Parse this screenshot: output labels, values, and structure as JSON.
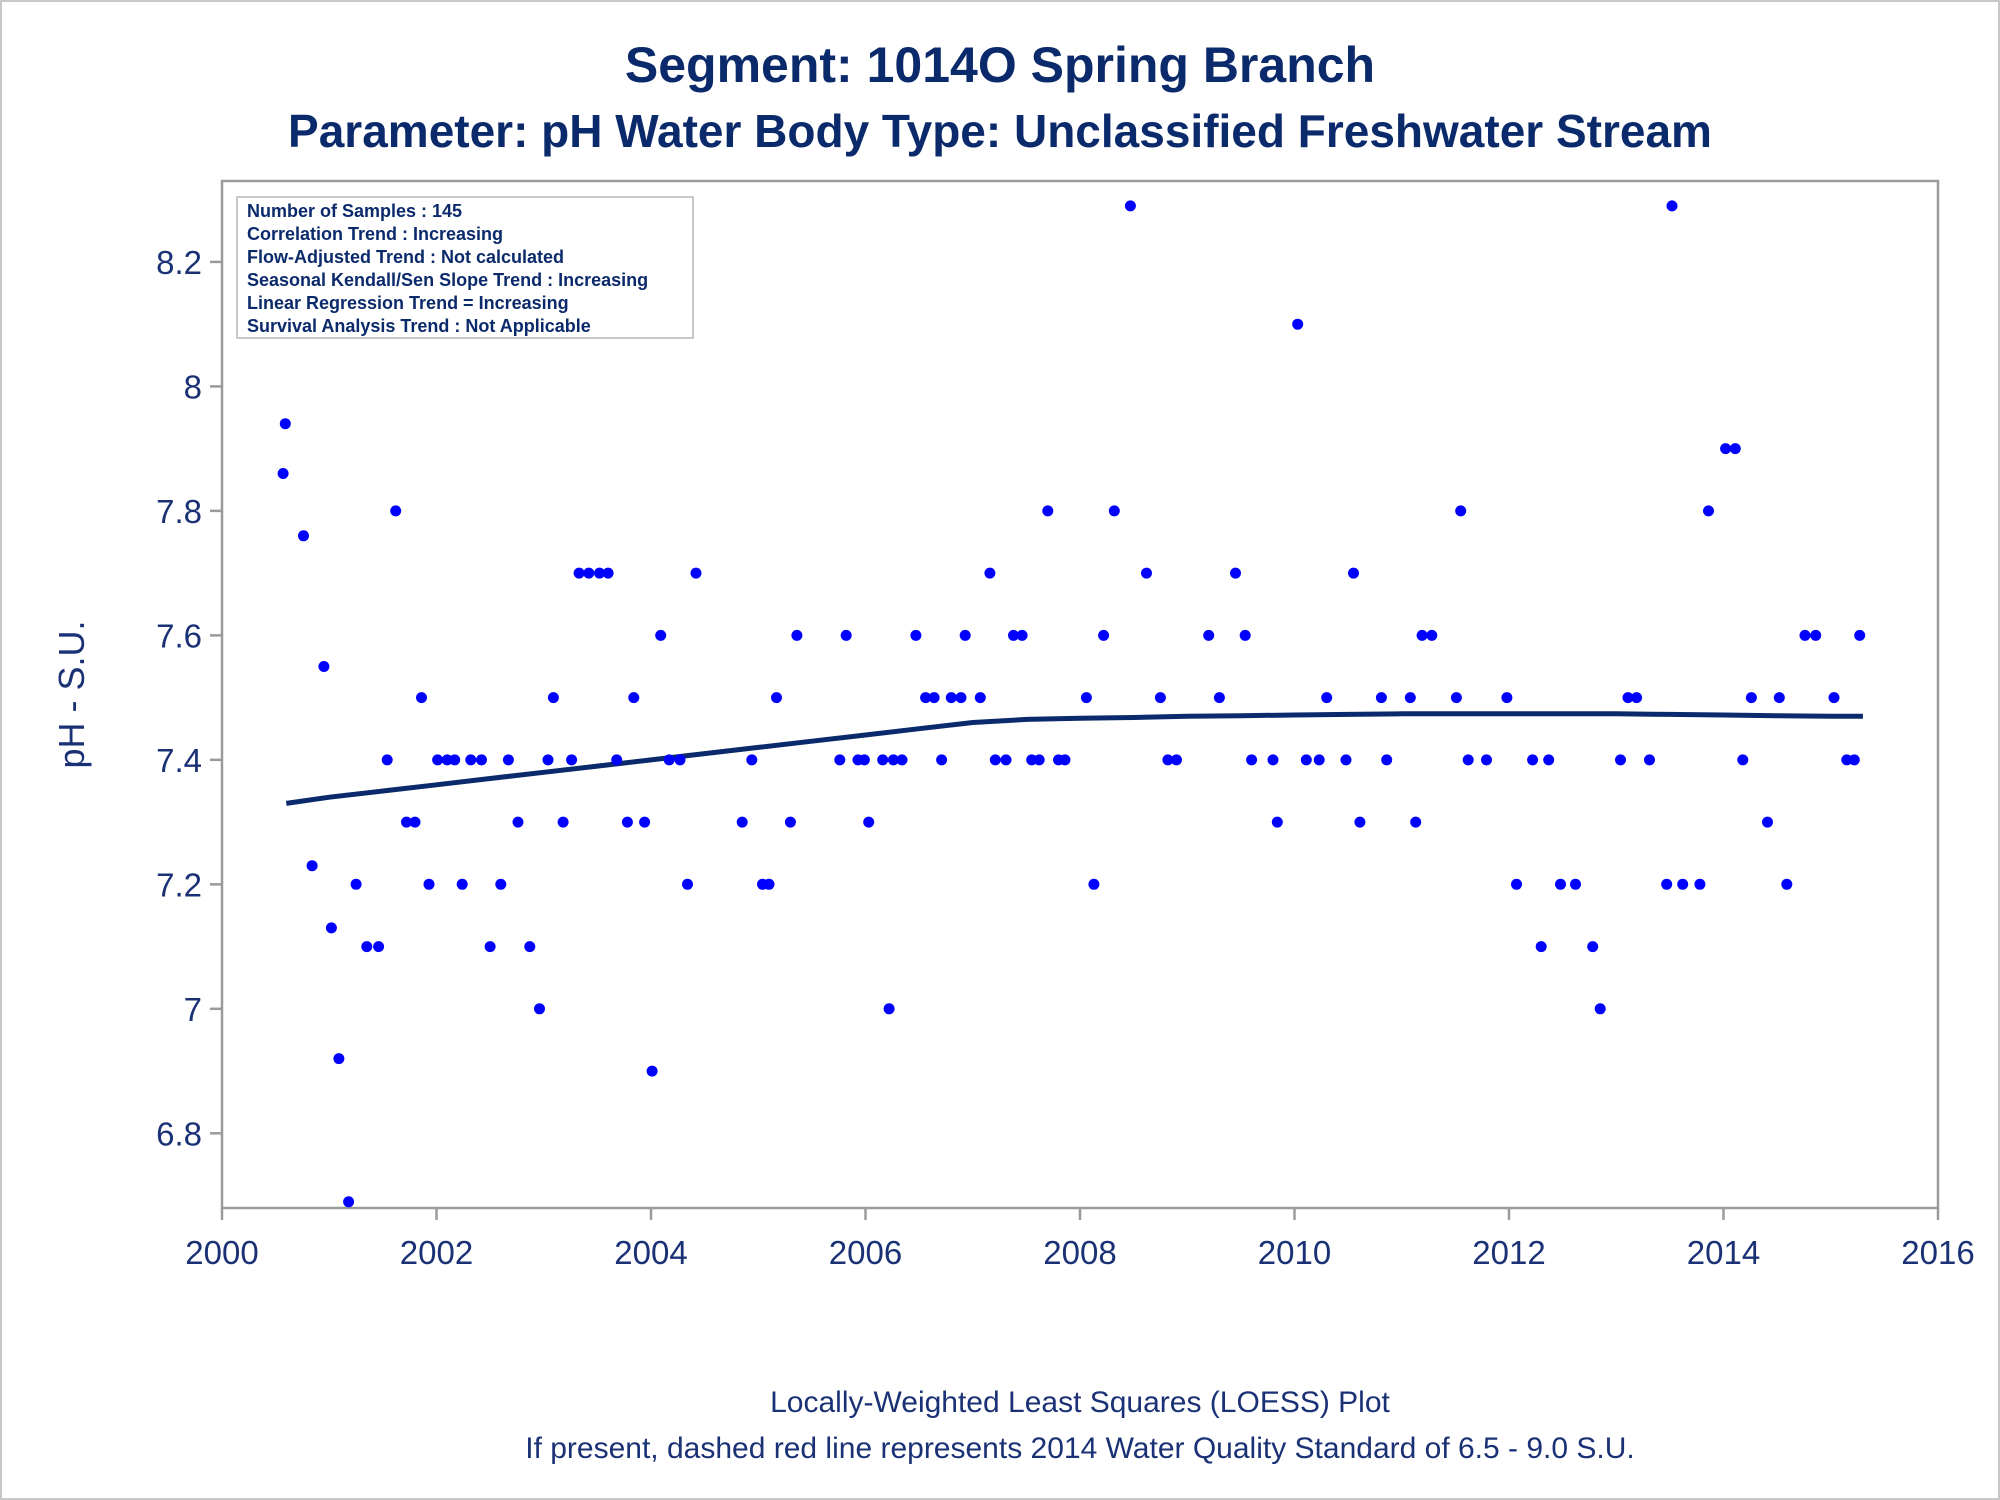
{
  "chart_data": {
    "type": "scatter",
    "title": "Segment: 1014O  Spring Branch",
    "subtitle": "Parameter: pH   Water Body Type: Unclassified Freshwater Stream",
    "xlabel": "",
    "ylabel": "pH - S.U.",
    "xlim": [
      2000,
      2016
    ],
    "ylim": [
      6.68,
      8.33
    ],
    "x_ticks": [
      "2000",
      "2002",
      "2004",
      "2006",
      "2008",
      "2010",
      "2012",
      "2014",
      "2016"
    ],
    "y_ticks": [
      "6.8",
      "7",
      "7.2",
      "7.4",
      "7.6",
      "7.8",
      "8",
      "8.2"
    ],
    "grid": false,
    "stats_box": [
      "Number of Samples : 145",
      "Correlation Trend : Increasing",
      "Flow-Adjusted Trend : Not calculated",
      "Seasonal Kendall/Sen Slope Trend : Increasing",
      "Linear Regression Trend = Increasing",
      "Survival Analysis Trend : Not Applicable"
    ],
    "footnotes": [
      "Locally-Weighted Least Squares (LOESS) Plot",
      "If present, dashed red line represents 2014 Water Quality Standard of 6.5 - 9.0 S.U."
    ],
    "colors": {
      "points": "#0000ff",
      "loess": "#0b2a6b",
      "text": "#0b2a6b",
      "frame": "#9a9a9a"
    },
    "series": [
      {
        "type": "scatter",
        "points": [
          [
            2000.57,
            7.86
          ],
          [
            2000.59,
            7.94
          ],
          [
            2000.76,
            7.76
          ],
          [
            2000.84,
            7.23
          ],
          [
            2000.95,
            7.55
          ],
          [
            2001.02,
            7.13
          ],
          [
            2001.09,
            6.92
          ],
          [
            2001.18,
            6.69
          ],
          [
            2001.25,
            7.2
          ],
          [
            2001.35,
            7.1
          ],
          [
            2001.46,
            7.1
          ],
          [
            2001.54,
            7.4
          ],
          [
            2001.62,
            7.8
          ],
          [
            2001.72,
            7.3
          ],
          [
            2001.8,
            7.3
          ],
          [
            2001.86,
            7.5
          ],
          [
            2001.93,
            7.2
          ],
          [
            2002.01,
            7.4
          ],
          [
            2002.1,
            7.4
          ],
          [
            2002.17,
            7.4
          ],
          [
            2002.24,
            7.2
          ],
          [
            2002.32,
            7.4
          ],
          [
            2002.42,
            7.4
          ],
          [
            2002.5,
            7.1
          ],
          [
            2002.6,
            7.2
          ],
          [
            2002.67,
            7.4
          ],
          [
            2002.76,
            7.3
          ],
          [
            2002.87,
            7.1
          ],
          [
            2002.96,
            7.0
          ],
          [
            2003.04,
            7.4
          ],
          [
            2003.09,
            7.5
          ],
          [
            2003.18,
            7.3
          ],
          [
            2003.26,
            7.4
          ],
          [
            2003.33,
            7.7
          ],
          [
            2003.42,
            7.7
          ],
          [
            2003.52,
            7.7
          ],
          [
            2003.6,
            7.7
          ],
          [
            2003.68,
            7.4
          ],
          [
            2003.78,
            7.3
          ],
          [
            2003.84,
            7.5
          ],
          [
            2003.94,
            7.3
          ],
          [
            2004.01,
            6.9
          ],
          [
            2004.09,
            7.6
          ],
          [
            2004.17,
            7.4
          ],
          [
            2004.27,
            7.4
          ],
          [
            2004.34,
            7.2
          ],
          [
            2004.42,
            7.7
          ],
          [
            2004.85,
            7.3
          ],
          [
            2004.94,
            7.4
          ],
          [
            2005.04,
            7.2
          ],
          [
            2005.1,
            7.2
          ],
          [
            2005.17,
            7.5
          ],
          [
            2005.3,
            7.3
          ],
          [
            2005.36,
            7.6
          ],
          [
            2005.76,
            7.4
          ],
          [
            2005.82,
            7.6
          ],
          [
            2005.93,
            7.4
          ],
          [
            2005.99,
            7.4
          ],
          [
            2006.03,
            7.3
          ],
          [
            2006.16,
            7.4
          ],
          [
            2006.22,
            7.0
          ],
          [
            2006.26,
            7.4
          ],
          [
            2006.34,
            7.4
          ],
          [
            2006.47,
            7.6
          ],
          [
            2006.56,
            7.5
          ],
          [
            2006.64,
            7.5
          ],
          [
            2006.71,
            7.4
          ],
          [
            2006.8,
            7.5
          ],
          [
            2006.89,
            7.5
          ],
          [
            2006.93,
            7.6
          ],
          [
            2007.07,
            7.5
          ],
          [
            2007.16,
            7.7
          ],
          [
            2007.21,
            7.4
          ],
          [
            2007.31,
            7.4
          ],
          [
            2007.38,
            7.6
          ],
          [
            2007.46,
            7.6
          ],
          [
            2007.55,
            7.4
          ],
          [
            2007.62,
            7.4
          ],
          [
            2007.7,
            7.8
          ],
          [
            2007.8,
            7.4
          ],
          [
            2007.86,
            7.4
          ],
          [
            2008.06,
            7.5
          ],
          [
            2008.13,
            7.2
          ],
          [
            2008.22,
            7.6
          ],
          [
            2008.32,
            7.8
          ],
          [
            2008.47,
            8.29
          ],
          [
            2008.62,
            7.7
          ],
          [
            2008.75,
            7.5
          ],
          [
            2008.82,
            7.4
          ],
          [
            2008.9,
            7.4
          ],
          [
            2009.2,
            7.6
          ],
          [
            2009.3,
            7.5
          ],
          [
            2009.45,
            7.7
          ],
          [
            2009.54,
            7.6
          ],
          [
            2009.6,
            7.4
          ],
          [
            2009.8,
            7.4
          ],
          [
            2009.84,
            7.3
          ],
          [
            2010.03,
            8.1
          ],
          [
            2010.11,
            7.4
          ],
          [
            2010.23,
            7.4
          ],
          [
            2010.3,
            7.5
          ],
          [
            2010.48,
            7.4
          ],
          [
            2010.55,
            7.7
          ],
          [
            2010.61,
            7.3
          ],
          [
            2010.81,
            7.5
          ],
          [
            2010.86,
            7.4
          ],
          [
            2011.08,
            7.5
          ],
          [
            2011.13,
            7.3
          ],
          [
            2011.19,
            7.6
          ],
          [
            2011.28,
            7.6
          ],
          [
            2011.51,
            7.5
          ],
          [
            2011.55,
            7.8
          ],
          [
            2011.62,
            7.4
          ],
          [
            2011.79,
            7.4
          ],
          [
            2011.98,
            7.5
          ],
          [
            2012.07,
            7.2
          ],
          [
            2012.22,
            7.4
          ],
          [
            2012.3,
            7.1
          ],
          [
            2012.37,
            7.4
          ],
          [
            2012.48,
            7.2
          ],
          [
            2012.62,
            7.2
          ],
          [
            2012.78,
            7.1
          ],
          [
            2012.85,
            7.0
          ],
          [
            2013.04,
            7.4
          ],
          [
            2013.11,
            7.5
          ],
          [
            2013.19,
            7.5
          ],
          [
            2013.31,
            7.4
          ],
          [
            2013.47,
            7.2
          ],
          [
            2013.52,
            8.29
          ],
          [
            2013.62,
            7.2
          ],
          [
            2013.78,
            7.2
          ],
          [
            2013.86,
            7.8
          ],
          [
            2014.02,
            7.9
          ],
          [
            2014.11,
            7.9
          ],
          [
            2014.18,
            7.4
          ],
          [
            2014.26,
            7.5
          ],
          [
            2014.41,
            7.3
          ],
          [
            2014.52,
            7.5
          ],
          [
            2014.59,
            7.2
          ],
          [
            2014.76,
            7.6
          ],
          [
            2014.86,
            7.6
          ],
          [
            2015.03,
            7.5
          ],
          [
            2015.15,
            7.4
          ],
          [
            2015.22,
            7.4
          ],
          [
            2015.27,
            7.6
          ]
        ]
      },
      {
        "type": "line",
        "points": [
          [
            2000.6,
            7.33
          ],
          [
            2001.0,
            7.34
          ],
          [
            2001.5,
            7.35
          ],
          [
            2002.0,
            7.36
          ],
          [
            2002.5,
            7.37
          ],
          [
            2003.0,
            7.38
          ],
          [
            2003.5,
            7.39
          ],
          [
            2004.0,
            7.4
          ],
          [
            2004.5,
            7.41
          ],
          [
            2005.0,
            7.42
          ],
          [
            2005.5,
            7.43
          ],
          [
            2006.0,
            7.44
          ],
          [
            2006.5,
            7.45
          ],
          [
            2007.0,
            7.46
          ],
          [
            2007.5,
            7.465
          ],
          [
            2008.0,
            7.467
          ],
          [
            2008.5,
            7.468
          ],
          [
            2009.0,
            7.47
          ],
          [
            2009.5,
            7.471
          ],
          [
            2010.0,
            7.472
          ],
          [
            2010.5,
            7.473
          ],
          [
            2011.0,
            7.474
          ],
          [
            2011.5,
            7.474
          ],
          [
            2012.0,
            7.474
          ],
          [
            2012.5,
            7.474
          ],
          [
            2013.0,
            7.474
          ],
          [
            2013.5,
            7.473
          ],
          [
            2014.0,
            7.472
          ],
          [
            2014.5,
            7.471
          ],
          [
            2015.0,
            7.47
          ],
          [
            2015.3,
            7.47
          ]
        ]
      }
    ]
  }
}
